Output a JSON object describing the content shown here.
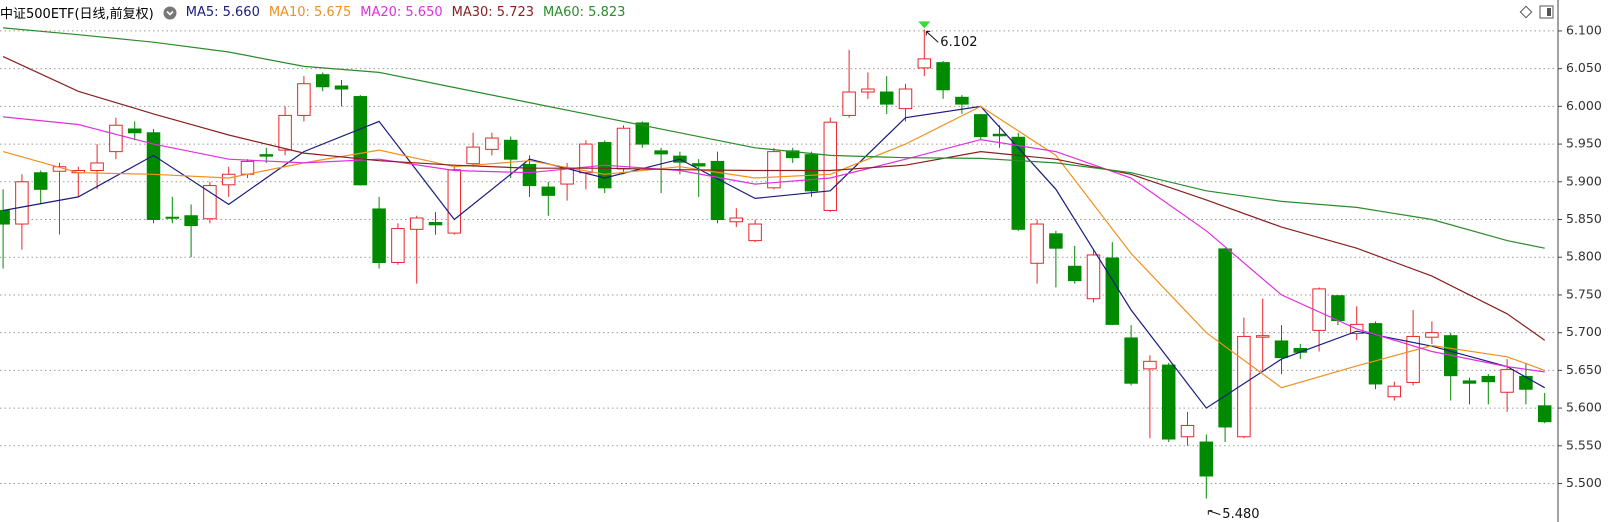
{
  "chart_data": {
    "type": "candlestick",
    "title": "中证500ETF(日线,前复权)",
    "up_color": "#e8262b",
    "down_color": "#008a00",
    "ylim": [
      5.449,
      6.141
    ],
    "yticks": [
      {
        "value": 5.5,
        "label": "5.500"
      },
      {
        "value": 5.55,
        "label": "5.550"
      },
      {
        "value": 5.6,
        "label": "5.600"
      },
      {
        "value": 5.65,
        "label": "5.650"
      },
      {
        "value": 5.7,
        "label": "5.700"
      },
      {
        "value": 5.75,
        "label": "5.750"
      },
      {
        "value": 5.8,
        "label": "5.800"
      },
      {
        "value": 5.85,
        "label": "5.850"
      },
      {
        "value": 5.9,
        "label": "5.900"
      },
      {
        "value": 5.95,
        "label": "5.950"
      },
      {
        "value": 6.0,
        "label": "6.000"
      },
      {
        "value": 6.05,
        "label": "6.050"
      },
      {
        "value": 6.1,
        "label": "6.100"
      }
    ],
    "grid": true,
    "open": [
      5.862,
      5.844,
      5.912,
      5.914,
      5.912,
      5.915,
      5.94,
      5.97,
      5.965,
      5.853,
      5.855,
      5.851,
      5.896,
      5.91,
      5.936,
      5.942,
      5.988,
      6.042,
      6.027,
      6.013,
      5.864,
      5.793,
      5.837,
      5.846,
      5.832,
      5.924,
      5.943,
      5.955,
      5.923,
      5.893,
      5.897,
      5.912,
      5.952,
      5.917,
      5.978,
      5.941,
      5.934,
      5.924,
      5.927,
      5.847,
      5.822,
      5.892,
      5.941,
      5.936,
      5.862,
      5.988,
      6.019,
      6.019,
      5.997,
      6.051,
      6.058,
      6.012,
      5.989,
      5.963,
      5.959,
      5.792,
      5.831,
      5.788,
      5.745,
      5.799,
      5.693,
      5.652,
      5.657,
      5.562,
      5.555,
      5.811,
      5.562,
      5.694,
      5.689,
      5.679,
      5.703,
      5.749,
      5.699,
      5.712,
      5.615,
      5.634,
      5.694,
      5.696,
      5.636,
      5.642,
      5.621,
      5.642,
      5.603
    ],
    "high": [
      5.89,
      5.91,
      5.915,
      5.925,
      5.92,
      5.95,
      5.985,
      5.98,
      5.97,
      5.88,
      5.87,
      5.9,
      5.92,
      5.93,
      5.945,
      6.0,
      6.04,
      6.045,
      6.035,
      6.015,
      5.88,
      5.845,
      5.855,
      5.86,
      5.92,
      5.965,
      5.965,
      5.96,
      5.935,
      5.9,
      5.925,
      5.955,
      5.955,
      5.975,
      5.98,
      5.945,
      5.94,
      5.93,
      5.94,
      5.865,
      5.85,
      5.945,
      5.945,
      5.94,
      5.985,
      6.075,
      6.045,
      6.04,
      6.03,
      6.102,
      6.06,
      6.015,
      5.99,
      5.975,
      5.965,
      5.85,
      5.835,
      5.815,
      5.81,
      5.82,
      5.71,
      5.67,
      5.66,
      5.595,
      5.565,
      5.812,
      5.72,
      5.745,
      5.71,
      5.685,
      5.76,
      5.75,
      5.735,
      5.715,
      5.635,
      5.73,
      5.715,
      5.7,
      5.64,
      5.645,
      5.665,
      5.66,
      5.62
    ],
    "low": [
      5.785,
      5.81,
      5.87,
      5.83,
      5.88,
      5.89,
      5.93,
      5.955,
      5.845,
      5.845,
      5.8,
      5.845,
      5.88,
      5.905,
      5.925,
      5.935,
      5.98,
      6.02,
      6.0,
      5.895,
      5.785,
      5.79,
      5.765,
      5.83,
      5.83,
      5.92,
      5.935,
      5.905,
      5.88,
      5.855,
      5.875,
      5.89,
      5.885,
      5.91,
      5.945,
      5.885,
      5.91,
      5.88,
      5.845,
      5.84,
      5.82,
      5.89,
      5.925,
      5.88,
      5.86,
      5.985,
      6.01,
      5.99,
      5.98,
      6.04,
      6.01,
      5.99,
      5.955,
      5.945,
      5.835,
      5.765,
      5.76,
      5.765,
      5.74,
      5.71,
      5.63,
      5.56,
      5.555,
      5.55,
      5.48,
      5.555,
      5.56,
      5.65,
      5.645,
      5.665,
      5.675,
      5.71,
      5.69,
      5.625,
      5.61,
      5.63,
      5.685,
      5.61,
      5.605,
      5.605,
      5.595,
      5.605,
      5.58
    ],
    "close": [
      5.844,
      5.9,
      5.89,
      5.92,
      5.915,
      5.925,
      5.975,
      5.965,
      5.85,
      5.852,
      5.842,
      5.895,
      5.91,
      5.927,
      5.934,
      5.988,
      6.03,
      6.026,
      6.023,
      5.896,
      5.793,
      5.838,
      5.852,
      5.843,
      5.916,
      5.946,
      5.958,
      5.93,
      5.895,
      5.882,
      5.918,
      5.95,
      5.892,
      5.971,
      5.95,
      5.937,
      5.926,
      5.921,
      5.85,
      5.852,
      5.844,
      5.94,
      5.932,
      5.888,
      5.979,
      6.019,
      6.023,
      6.003,
      6.023,
      6.063,
      6.022,
      6.003,
      5.96,
      5.961,
      5.837,
      5.844,
      5.812,
      5.769,
      5.803,
      5.711,
      5.633,
      5.662,
      5.559,
      5.577,
      5.51,
      5.575,
      5.695,
      5.696,
      5.667,
      5.674,
      5.758,
      5.716,
      5.711,
      5.632,
      5.629,
      5.695,
      5.7,
      5.643,
      5.633,
      5.635,
      5.651,
      5.625,
      5.582
    ],
    "max_label": {
      "value": 6.102,
      "label": "6.102"
    },
    "min_label": {
      "value": 5.48,
      "label": "5.480"
    },
    "series": [
      {
        "name": "MA5: 5.660",
        "color": "#1c1c80",
        "x": [
          0,
          4,
          8,
          12,
          16,
          20,
          24,
          28,
          32,
          36,
          40,
          44,
          48,
          52,
          56,
          60,
          64,
          68,
          72,
          76,
          80,
          82
        ],
        "values": [
          5.862,
          5.88,
          5.935,
          5.87,
          5.94,
          5.98,
          5.85,
          5.93,
          5.905,
          5.93,
          5.878,
          5.888,
          5.985,
          6.0,
          5.89,
          5.73,
          5.6,
          5.665,
          5.702,
          5.682,
          5.655,
          5.627
        ]
      },
      {
        "name": "MA10: 5.675",
        "color": "#f0901e",
        "x": [
          0,
          4,
          8,
          12,
          16,
          20,
          24,
          28,
          32,
          36,
          40,
          44,
          48,
          52,
          56,
          60,
          64,
          68,
          72,
          76,
          80,
          82
        ],
        "values": [
          5.94,
          5.912,
          5.91,
          5.905,
          5.925,
          5.942,
          5.92,
          5.928,
          5.91,
          5.92,
          5.905,
          5.91,
          5.95,
          6.0,
          5.935,
          5.805,
          5.7,
          5.627,
          5.656,
          5.683,
          5.668,
          5.65
        ]
      },
      {
        "name": "MA20: 5.650",
        "color": "#e030e0",
        "x": [
          0,
          4,
          8,
          12,
          16,
          20,
          24,
          28,
          32,
          36,
          40,
          44,
          48,
          52,
          56,
          60,
          64,
          68,
          72,
          76,
          80,
          82
        ],
        "values": [
          5.986,
          5.976,
          5.95,
          5.93,
          5.925,
          5.93,
          5.915,
          5.912,
          5.922,
          5.915,
          5.897,
          5.905,
          5.93,
          5.956,
          5.94,
          5.905,
          5.835,
          5.75,
          5.705,
          5.675,
          5.655,
          5.648
        ]
      },
      {
        "name": "MA30: 5.723",
        "color": "#8a2020",
        "x": [
          0,
          4,
          8,
          12,
          16,
          20,
          24,
          28,
          32,
          36,
          40,
          44,
          48,
          52,
          56,
          60,
          64,
          68,
          72,
          76,
          80,
          82
        ],
        "values": [
          6.066,
          6.02,
          5.99,
          5.962,
          5.938,
          5.928,
          5.922,
          5.918,
          5.918,
          5.916,
          5.915,
          5.915,
          5.922,
          5.94,
          5.93,
          5.91,
          5.876,
          5.84,
          5.812,
          5.775,
          5.725,
          5.69
        ]
      },
      {
        "name": "MA60: 5.823",
        "color": "#2a8c2a",
        "x": [
          0,
          4,
          8,
          12,
          16,
          20,
          24,
          28,
          32,
          36,
          40,
          44,
          48,
          52,
          56,
          60,
          64,
          68,
          72,
          76,
          80,
          82
        ],
        "values": [
          6.104,
          6.095,
          6.085,
          6.072,
          6.053,
          6.045,
          6.025,
          6.005,
          5.985,
          5.965,
          5.945,
          5.935,
          5.932,
          5.931,
          5.925,
          5.912,
          5.888,
          5.874,
          5.866,
          5.85,
          5.822,
          5.812
        ]
      }
    ]
  }
}
